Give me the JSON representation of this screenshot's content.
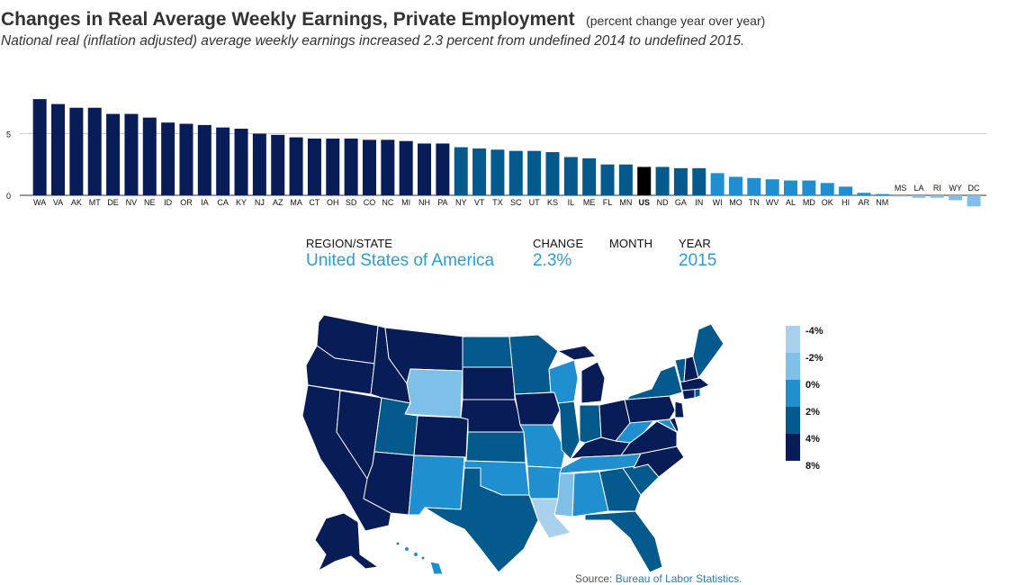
{
  "header": {
    "title": "Changes in Real Average Weekly Earnings, Private Employment",
    "title_note": "(percent change year over year)",
    "subtitle": "National real (inflation adjusted) average weekly earnings increased 2.3 percent from undefined 2014 to undefined 2015."
  },
  "info": {
    "region_label": "REGION/STATE",
    "region_value": "United States of America",
    "change_label": "CHANGE",
    "change_value": "2.3%",
    "month_label": "MONTH",
    "month_value": "",
    "year_label": "YEAR",
    "year_value": "2015"
  },
  "legend": {
    "labels": [
      "-4%",
      "-2%",
      "0%",
      "2%",
      "4%",
      "8%"
    ],
    "colors": [
      "#a9d1ee",
      "#7fc0e8",
      "#1f8fd0",
      "#045a8d",
      "#081d58"
    ]
  },
  "colors": {
    "highlight": "#000000",
    "accent_text": "#2a9fd6"
  },
  "source": {
    "prefix": "Source: ",
    "link_text": "Bureau of Labor Statistics."
  },
  "chart_data": {
    "type": "bar",
    "title": "Changes in Real Average Weekly Earnings, Private Employment",
    "ylim": [
      -2,
      8
    ],
    "yticks": [
      0,
      5
    ],
    "grid": true,
    "highlight_category": "US",
    "categories": [
      "WA",
      "VA",
      "AK",
      "MT",
      "DE",
      "NV",
      "NE",
      "ID",
      "OR",
      "IA",
      "CA",
      "KY",
      "NJ",
      "AZ",
      "MA",
      "CT",
      "OH",
      "SD",
      "CO",
      "NC",
      "MI",
      "NH",
      "PA",
      "NY",
      "VT",
      "TX",
      "SC",
      "UT",
      "KS",
      "IL",
      "ME",
      "FL",
      "MN",
      "US",
      "ND",
      "GA",
      "IN",
      "WI",
      "MO",
      "TN",
      "WV",
      "AL",
      "MD",
      "OK",
      "HI",
      "AR",
      "NM",
      "MS",
      "LA",
      "RI",
      "WY",
      "DC"
    ],
    "values": [
      7.8,
      7.4,
      7.1,
      7.1,
      6.6,
      6.6,
      6.3,
      5.9,
      5.8,
      5.7,
      5.5,
      5.4,
      5.0,
      4.9,
      4.7,
      4.6,
      4.6,
      4.6,
      4.5,
      4.5,
      4.4,
      4.2,
      4.2,
      3.9,
      3.8,
      3.7,
      3.6,
      3.6,
      3.5,
      3.1,
      3.0,
      2.5,
      2.5,
      2.3,
      2.3,
      2.2,
      2.2,
      1.8,
      1.5,
      1.4,
      1.3,
      1.2,
      1.2,
      1.0,
      0.7,
      0.2,
      0.1,
      -0.1,
      -0.2,
      -0.2,
      -0.4,
      -0.9
    ],
    "labels_above": [
      "MS",
      "LA",
      "RI",
      "WY",
      "DC"
    ]
  }
}
